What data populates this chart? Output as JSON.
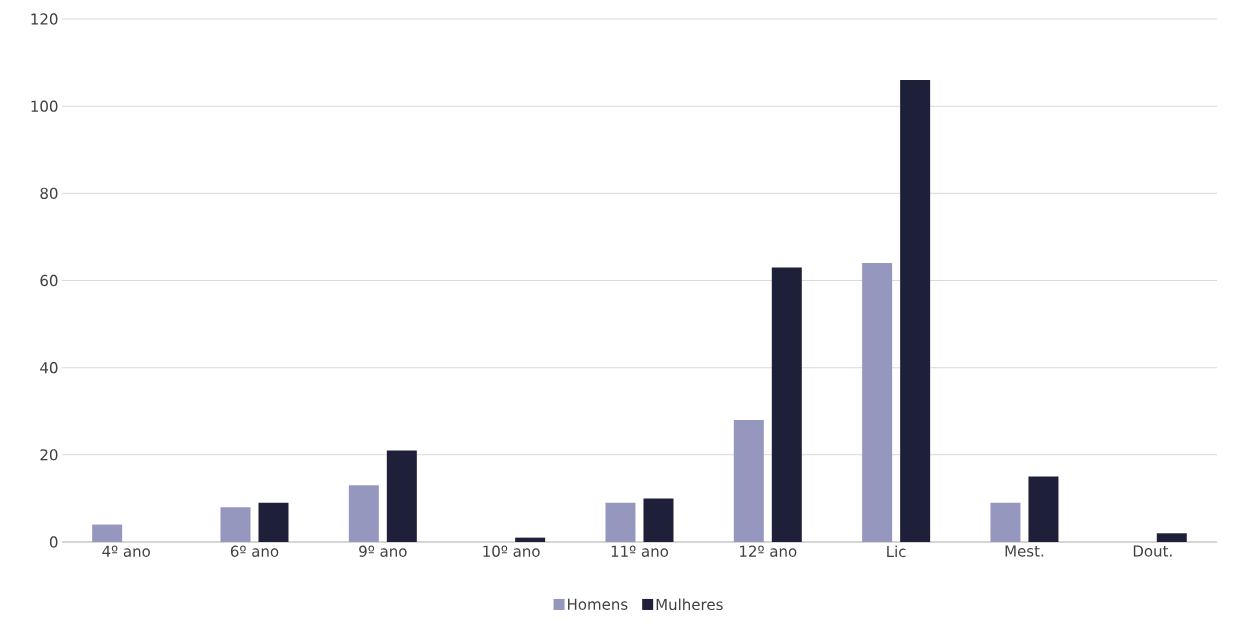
{
  "chart_data": {
    "type": "bar",
    "categories": [
      "4º ano",
      "6º ano",
      "9º ano",
      "10º ano",
      "11º ano",
      "12º ano",
      "Lic",
      "Mest.",
      "Dout."
    ],
    "series": [
      {
        "name": "Homens",
        "color": "#9597bf",
        "values": [
          4,
          8,
          13,
          null,
          9,
          28,
          64,
          9,
          null
        ]
      },
      {
        "name": "Mulheres",
        "color": "#1e1f38",
        "values": [
          null,
          9,
          21,
          1,
          10,
          63,
          106,
          15,
          2
        ]
      }
    ],
    "ylim": [
      0,
      120
    ],
    "yticks": [
      0,
      20,
      40,
      60,
      80,
      100,
      120
    ],
    "grid": "y",
    "legend": "bottom"
  }
}
